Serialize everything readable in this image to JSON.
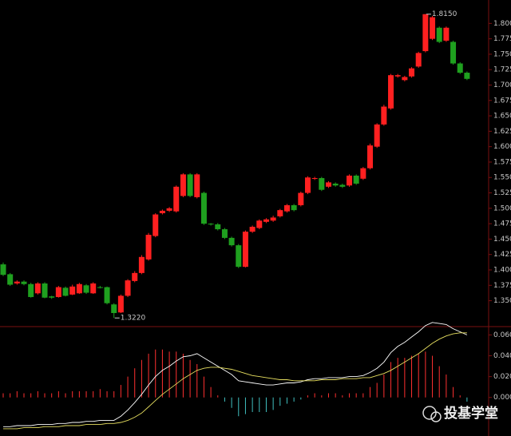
{
  "chart_data": [
    {
      "type": "candlestick",
      "up_color": "#ff2020",
      "down_color": "#1fa01f",
      "open": [
        1.409,
        1.393,
        1.378,
        1.381,
        1.377,
        1.362,
        1.378,
        1.357,
        1.356,
        1.371,
        1.36,
        1.362,
        1.375,
        1.362,
        1.372,
        1.372,
        1.344,
        1.331,
        1.358,
        1.382,
        1.395,
        1.417,
        1.455,
        1.492,
        1.496,
        1.495,
        1.52,
        1.555,
        1.518,
        1.525,
        1.475,
        1.474,
        1.466,
        1.452,
        1.44,
        1.405,
        1.462,
        1.468,
        1.478,
        1.48,
        1.487,
        1.495,
        1.505,
        1.505,
        1.525,
        1.548,
        1.549,
        1.535,
        1.54,
        1.538,
        1.537,
        1.553,
        1.548,
        1.565,
        1.6,
        1.636,
        1.662,
        1.714,
        1.708,
        1.714,
        1.73,
        1.755,
        1.775,
        1.793,
        1.772,
        1.77,
        1.735,
        1.72
      ],
      "close": [
        1.392,
        1.376,
        1.381,
        1.377,
        1.356,
        1.378,
        1.355,
        1.355,
        1.372,
        1.358,
        1.373,
        1.377,
        1.363,
        1.378,
        1.371,
        1.346,
        1.33,
        1.358,
        1.383,
        1.395,
        1.421,
        1.457,
        1.49,
        1.496,
        1.5,
        1.535,
        1.555,
        1.52,
        1.555,
        1.475,
        1.474,
        1.466,
        1.452,
        1.44,
        1.405,
        1.462,
        1.47,
        1.48,
        1.482,
        1.485,
        1.497,
        1.505,
        1.497,
        1.525,
        1.55,
        1.549,
        1.53,
        1.542,
        1.537,
        1.535,
        1.553,
        1.54,
        1.565,
        1.602,
        1.636,
        1.665,
        1.716,
        1.716,
        1.713,
        1.727,
        1.752,
        1.815,
        1.81,
        1.77,
        1.793,
        1.735,
        1.72,
        1.71
      ],
      "high": [
        1.412,
        1.395,
        1.383,
        1.383,
        1.379,
        1.38,
        1.38,
        1.358,
        1.374,
        1.373,
        1.376,
        1.379,
        1.377,
        1.38,
        1.374,
        1.373,
        1.346,
        1.36,
        1.385,
        1.398,
        1.424,
        1.46,
        1.492,
        1.498,
        1.502,
        1.537,
        1.557,
        1.557,
        1.557,
        1.527,
        1.476,
        1.476,
        1.468,
        1.454,
        1.442,
        1.464,
        1.472,
        1.482,
        1.484,
        1.488,
        1.499,
        1.507,
        1.507,
        1.527,
        1.552,
        1.551,
        1.551,
        1.544,
        1.542,
        1.54,
        1.555,
        1.555,
        1.567,
        1.605,
        1.638,
        1.668,
        1.718,
        1.718,
        1.715,
        1.729,
        1.754,
        1.815,
        1.812,
        1.795,
        1.795,
        1.772,
        1.737,
        1.722
      ],
      "low": [
        1.39,
        1.374,
        1.376,
        1.375,
        1.355,
        1.36,
        1.354,
        1.353,
        1.355,
        1.357,
        1.359,
        1.361,
        1.361,
        1.361,
        1.37,
        1.344,
        1.322,
        1.33,
        1.356,
        1.38,
        1.393,
        1.415,
        1.453,
        1.49,
        1.494,
        1.493,
        1.518,
        1.518,
        1.516,
        1.473,
        1.472,
        1.464,
        1.45,
        1.438,
        1.403,
        1.404,
        1.46,
        1.466,
        1.476,
        1.478,
        1.485,
        1.493,
        1.495,
        1.503,
        1.523,
        1.546,
        1.528,
        1.533,
        1.535,
        1.533,
        1.535,
        1.538,
        1.546,
        1.563,
        1.598,
        1.634,
        1.66,
        1.712,
        1.706,
        1.712,
        1.728,
        1.753,
        1.773,
        1.768,
        1.77,
        1.733,
        1.718,
        1.708
      ],
      "ylim": [
        1.308,
        1.838
      ],
      "yticks": [
        {
          "value": 1.35,
          "label": "1.350"
        },
        1.375,
        {
          "value": 1.4,
          "label": "1.400"
        },
        1.425,
        {
          "value": 1.45,
          "label": "1.450"
        },
        1.475,
        {
          "value": 1.5,
          "label": "1.500"
        },
        1.525,
        {
          "value": 1.55,
          "label": "1.550"
        },
        1.575,
        {
          "value": 1.6,
          "label": "1.600"
        },
        1.625,
        {
          "value": 1.65,
          "label": "1.650"
        },
        1.675,
        {
          "value": 1.7,
          "label": "1.700"
        },
        1.725,
        {
          "value": 1.75,
          "label": "1.750"
        },
        1.775,
        {
          "value": 1.8,
          "label": "1.800"
        }
      ],
      "annotations": [
        {
          "value": 1.815,
          "label": "1.8150"
        },
        {
          "value": 1.322,
          "label": "1.3220"
        }
      ]
    },
    {
      "type": "macd",
      "up_color": "#ff3030",
      "down_color": "#40c0c0",
      "histogram": [
        0.004,
        0.004,
        0.006,
        0.004,
        0.004,
        0.006,
        0.004,
        0.004,
        0.006,
        0.004,
        0.006,
        0.006,
        0.006,
        0.006,
        0.008,
        0.006,
        0.006,
        0.012,
        0.02,
        0.028,
        0.036,
        0.042,
        0.046,
        0.046,
        0.044,
        0.044,
        0.042,
        0.036,
        0.032,
        0.02,
        0.01,
        0.002,
        -0.004,
        -0.01,
        -0.018,
        -0.016,
        -0.014,
        -0.014,
        -0.014,
        -0.012,
        -0.008,
        -0.006,
        -0.004,
        -0.002,
        0.002,
        0.004,
        0.002,
        0.004,
        0.004,
        0.002,
        0.004,
        0.004,
        0.004,
        0.01,
        0.014,
        0.022,
        0.034,
        0.038,
        0.038,
        0.04,
        0.042,
        0.044,
        0.04,
        0.03,
        0.022,
        0.01,
        0.002,
        -0.004
      ],
      "lines": [
        {
          "color": "#ffffff",
          "values": [
            -0.028,
            -0.028,
            -0.027,
            -0.027,
            -0.027,
            -0.026,
            -0.026,
            -0.026,
            -0.025,
            -0.025,
            -0.024,
            -0.024,
            -0.023,
            -0.023,
            -0.022,
            -0.022,
            -0.022,
            -0.018,
            -0.012,
            -0.005,
            0.003,
            0.012,
            0.02,
            0.026,
            0.03,
            0.035,
            0.039,
            0.04,
            0.042,
            0.038,
            0.034,
            0.03,
            0.026,
            0.022,
            0.016,
            0.015,
            0.014,
            0.013,
            0.012,
            0.012,
            0.013,
            0.014,
            0.014,
            0.015,
            0.017,
            0.018,
            0.018,
            0.019,
            0.019,
            0.019,
            0.02,
            0.02,
            0.021,
            0.024,
            0.028,
            0.034,
            0.043,
            0.049,
            0.053,
            0.058,
            0.063,
            0.069,
            0.072,
            0.071,
            0.07,
            0.066,
            0.063,
            0.06
          ]
        },
        {
          "color": "#e8e060",
          "values": [
            -0.03,
            -0.03,
            -0.03,
            -0.029,
            -0.029,
            -0.029,
            -0.028,
            -0.028,
            -0.028,
            -0.027,
            -0.027,
            -0.027,
            -0.026,
            -0.026,
            -0.026,
            -0.025,
            -0.025,
            -0.024,
            -0.022,
            -0.019,
            -0.015,
            -0.009,
            -0.003,
            0.003,
            0.008,
            0.013,
            0.018,
            0.022,
            0.026,
            0.028,
            0.029,
            0.029,
            0.028,
            0.027,
            0.025,
            0.023,
            0.021,
            0.02,
            0.019,
            0.018,
            0.017,
            0.017,
            0.016,
            0.016,
            0.016,
            0.016,
            0.017,
            0.017,
            0.017,
            0.018,
            0.018,
            0.018,
            0.019,
            0.019,
            0.021,
            0.023,
            0.026,
            0.03,
            0.034,
            0.038,
            0.042,
            0.047,
            0.052,
            0.056,
            0.059,
            0.061,
            0.062,
            0.062
          ]
        }
      ],
      "ylim": [
        -0.037,
        0.068
      ],
      "yticks": [
        {
          "value": 0,
          "label": "0.0000"
        },
        {
          "value": 0.02,
          "label": "0.0200"
        },
        {
          "value": 0.04,
          "label": "0.0400"
        },
        {
          "value": 0.06,
          "label": "0.0600"
        }
      ]
    }
  ],
  "watermark": "投基学堂"
}
